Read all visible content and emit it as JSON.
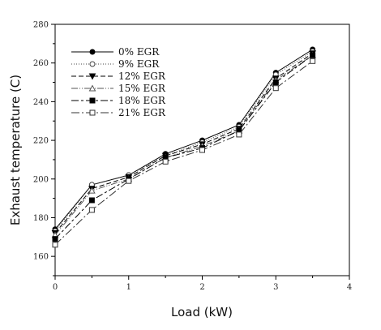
{
  "chart_data": {
    "type": "line",
    "xlabel": "Load (kW)",
    "ylabel": "Exhaust temperature (C)",
    "xlim": [
      0,
      4
    ],
    "ylim": [
      150,
      280
    ],
    "xticks": [
      "0",
      "1",
      "2",
      "3",
      "4"
    ],
    "yticks": [
      "160",
      "180",
      "200",
      "220",
      "240",
      "260",
      "280"
    ],
    "grid": false,
    "legend_position": "top-left",
    "x": [
      0,
      0.5,
      1,
      1.5,
      2,
      2.5,
      3,
      3.5
    ],
    "series": [
      {
        "name": "0% EGR",
        "values": [
          174,
          197,
          202,
          213,
          220,
          228,
          255,
          267
        ],
        "marker": "circle-filled",
        "dash": "none",
        "color": "#000000"
      },
      {
        "name": "9% EGR",
        "values": [
          173,
          197,
          202,
          212,
          219,
          227,
          254,
          266
        ],
        "marker": "circle-open",
        "dash": "1,2",
        "color": "#444444"
      },
      {
        "name": "12% EGR",
        "values": [
          172,
          195,
          201,
          212,
          218,
          226,
          252,
          265
        ],
        "marker": "triangle-down",
        "dash": "6,3",
        "color": "#000000"
      },
      {
        "name": "15% EGR",
        "values": [
          171,
          194,
          200,
          211,
          217,
          225,
          251,
          264
        ],
        "marker": "triangle-open",
        "dash": "8,2,1,2,1,2",
        "color": "#555555"
      },
      {
        "name": "18% EGR",
        "values": [
          169,
          189,
          200,
          211,
          216,
          225,
          250,
          264
        ],
        "marker": "square-filled",
        "dash": "9,3,3,3",
        "color": "#000000"
      },
      {
        "name": "21% EGR",
        "values": [
          166,
          184,
          199,
          209,
          215,
          223,
          247,
          261
        ],
        "marker": "square-open",
        "dash": "10,3,2,3",
        "color": "#333333"
      }
    ]
  }
}
